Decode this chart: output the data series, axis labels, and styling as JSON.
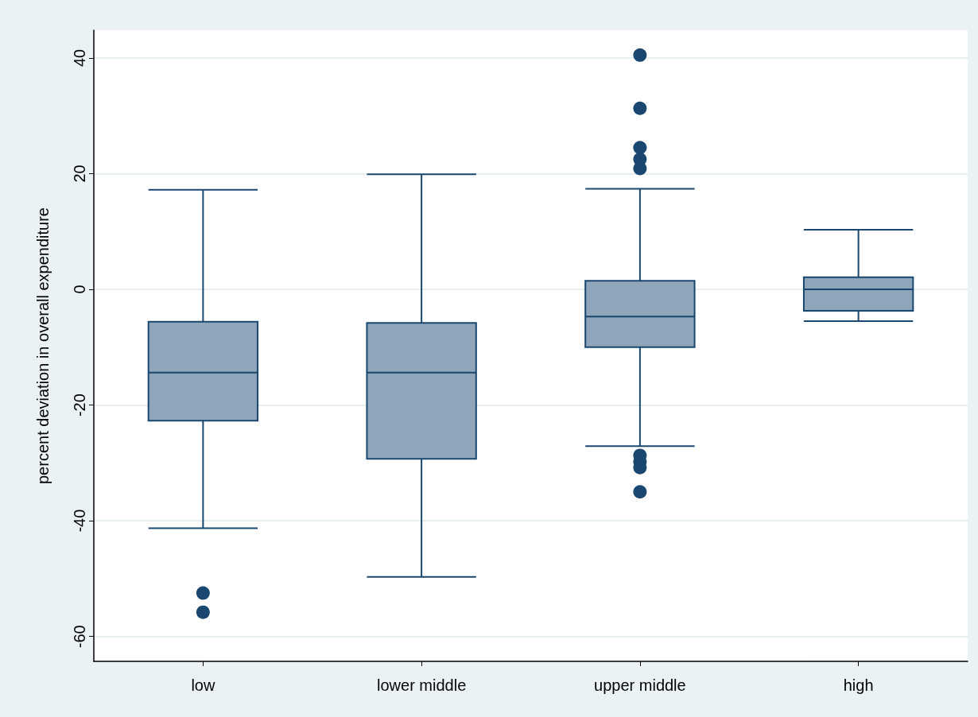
{
  "chart_data": {
    "type": "box",
    "ylabel": "percent deviation in overall expenditure",
    "categories": [
      "low",
      "lower middle",
      "upper middle",
      "high"
    ],
    "ylim": [
      -64.3,
      44.8
    ],
    "yticks": [
      -60,
      -40,
      -20,
      0,
      20,
      40
    ],
    "grid": "y",
    "series": [
      {
        "color": "#8fa5ba",
        "boxes": [
          {
            "low": -41.3,
            "q1": -22.7,
            "median": -14.4,
            "q3": -5.6,
            "high": 17.2,
            "outliers": [
              -52.5,
              -55.8
            ]
          },
          {
            "low": -49.7,
            "q1": -29.3,
            "median": -14.4,
            "q3": -5.8,
            "high": 19.9
          },
          {
            "low": -27.1,
            "q1": -10.0,
            "median": -4.7,
            "q3": 1.5,
            "high": 17.4,
            "outliers": [
              40.5,
              31.3,
              24.5,
              22.5,
              20.9,
              -28.7,
              -29.8,
              -30.8,
              -35.0
            ]
          },
          {
            "low": -5.5,
            "q1": -3.7,
            "median": 0,
            "q3": 2.1,
            "high": 10.3
          }
        ]
      }
    ]
  }
}
